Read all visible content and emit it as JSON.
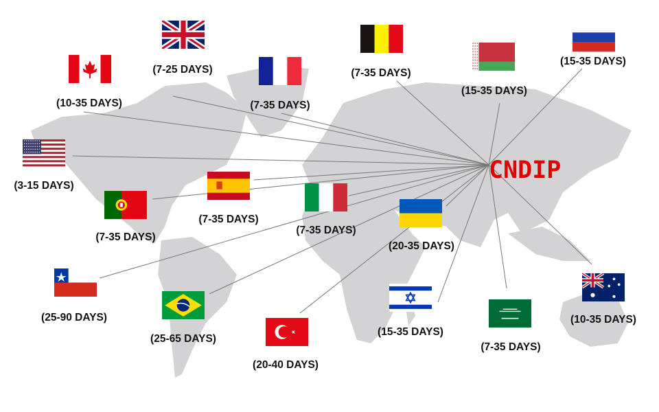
{
  "hub": {
    "label": "CNDIP",
    "color": "#e00000"
  },
  "colors": {
    "land": "#d3d3d5",
    "line": "#777777",
    "text": "#111111"
  },
  "destinations": [
    {
      "country": "United Kingdom",
      "flag": "uk-flag",
      "days": "(7-25 DAYS)"
    },
    {
      "country": "Canada",
      "flag": "canada-flag",
      "days": "(10-35 DAYS)"
    },
    {
      "country": "France",
      "flag": "france-flag",
      "days": "(7-35 DAYS)"
    },
    {
      "country": "Belgium",
      "flag": "belgium-flag",
      "days": "(7-35 DAYS)"
    },
    {
      "country": "Belarus",
      "flag": "belarus-flag",
      "days": "(15-35 DAYS)"
    },
    {
      "country": "Russia",
      "flag": "russia-flag",
      "days": "(15-35 DAYS)"
    },
    {
      "country": "United States",
      "flag": "usa-flag",
      "days": "(3-15 DAYS)"
    },
    {
      "country": "Portugal",
      "flag": "portugal-flag",
      "days": "(7-35 DAYS)"
    },
    {
      "country": "Spain",
      "flag": "spain-flag",
      "days": "(7-35 DAYS)"
    },
    {
      "country": "Italy",
      "flag": "italy-flag",
      "days": "(7-35 DAYS)"
    },
    {
      "country": "Ukraine",
      "flag": "ukraine-flag",
      "days": "(20-35 DAYS)"
    },
    {
      "country": "Chile",
      "flag": "chile-flag",
      "days": "(25-90 DAYS)"
    },
    {
      "country": "Brazil",
      "flag": "brazil-flag",
      "days": "(25-65 DAYS)"
    },
    {
      "country": "Turkey",
      "flag": "turkey-flag",
      "days": "(20-40 DAYS)"
    },
    {
      "country": "Israel",
      "flag": "israel-flag",
      "days": "(15-35 DAYS)"
    },
    {
      "country": "Saudi Arabia",
      "flag": "saudi-flag",
      "days": "(7-35 DAYS)"
    },
    {
      "country": "Australia",
      "flag": "australia-flag",
      "days": "(10-35 DAYS)"
    }
  ]
}
